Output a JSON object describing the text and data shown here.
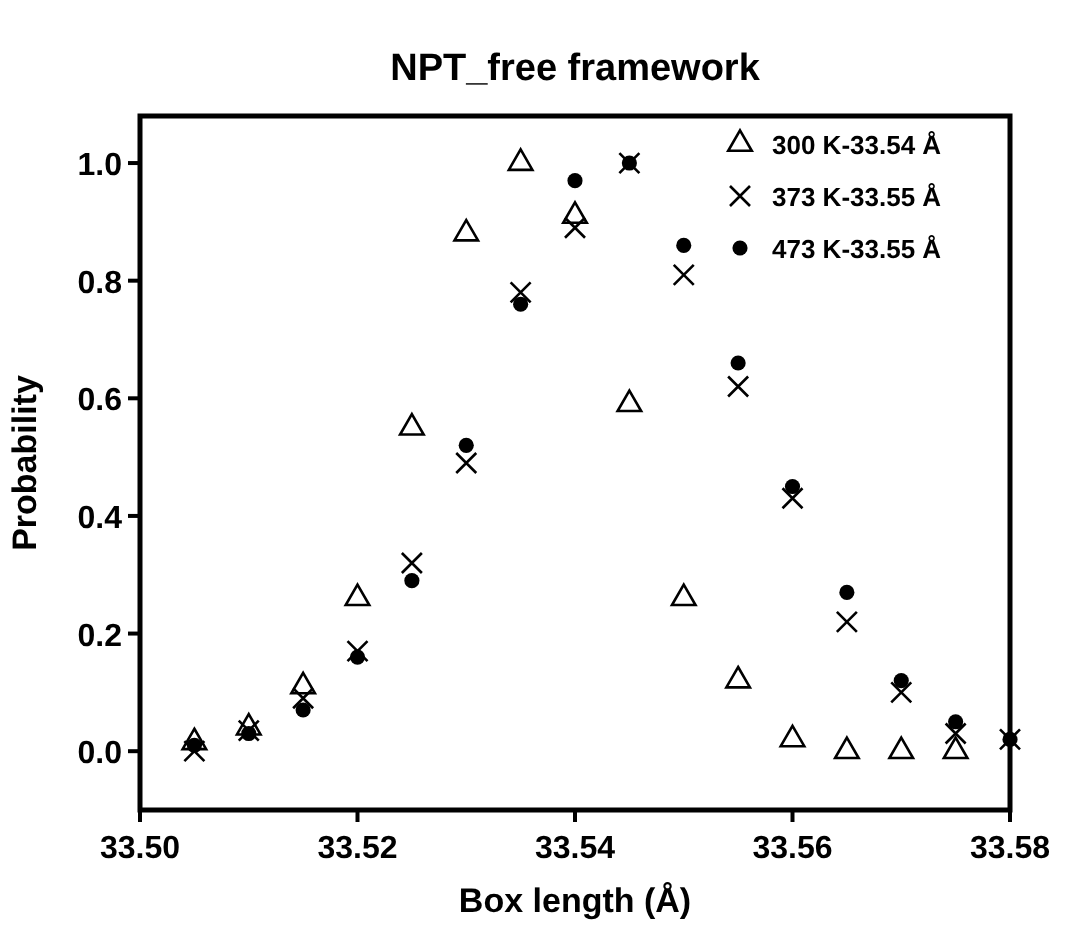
{
  "chart_data": {
    "type": "scatter",
    "title": "NPT_free framework",
    "xlabel": "Box length (Å)",
    "ylabel": "Probability",
    "x": [
      33.505,
      33.51,
      33.515,
      33.52,
      33.525,
      33.53,
      33.535,
      33.54,
      33.545,
      33.55,
      33.555,
      33.56,
      33.565,
      33.57,
      33.575,
      33.58
    ],
    "xlim": [
      33.5,
      33.58
    ],
    "xticks": [
      {
        "value": 33.5,
        "label": "33.50"
      },
      {
        "value": 33.52,
        "label": "33.52"
      },
      {
        "value": 33.54,
        "label": "33.54"
      },
      {
        "value": 33.56,
        "label": "33.56"
      },
      {
        "value": 33.58,
        "label": "33.58"
      }
    ],
    "ylim": [
      -0.1,
      1.08
    ],
    "yticks": [
      {
        "value": 0,
        "label": "0.0"
      },
      {
        "value": 0.2,
        "label": "0.2"
      },
      {
        "value": 0.4,
        "label": "0.4"
      },
      {
        "value": 0.6,
        "label": "0.6"
      },
      {
        "value": 0.8,
        "label": "0.8"
      },
      {
        "value": 1,
        "label": "1.0"
      }
    ],
    "series": [
      {
        "name": "300 K-33.54 Å",
        "color": "#000000",
        "marker": "triangle",
        "values": [
          0.015,
          0.04,
          0.11,
          0.26,
          0.55,
          0.88,
          1.0,
          0.91,
          0.59,
          0.26,
          0.12,
          0.02,
          0.0,
          0.0,
          0.0,
          null
        ]
      },
      {
        "name": "373 K-33.55 Å",
        "color": "#000000",
        "marker": "cross",
        "values": [
          0.0,
          0.035,
          0.09,
          0.17,
          0.32,
          0.49,
          0.78,
          0.89,
          1.0,
          0.81,
          0.62,
          0.43,
          0.22,
          0.1,
          0.03,
          0.02
        ]
      },
      {
        "name": "473 K-33.55 Å",
        "color": "#000000",
        "marker": "circle",
        "values": [
          0.01,
          0.03,
          0.07,
          0.16,
          0.29,
          0.52,
          0.76,
          0.97,
          1.0,
          0.86,
          0.66,
          0.45,
          0.27,
          0.12,
          0.05,
          0.02
        ]
      }
    ],
    "grid": false,
    "legend": "top right"
  }
}
